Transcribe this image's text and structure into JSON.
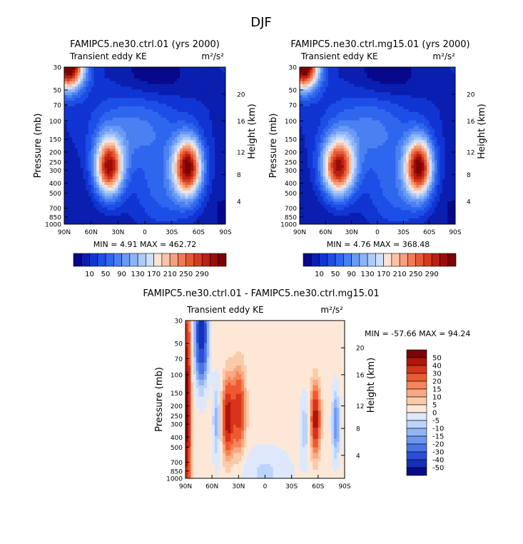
{
  "page_title": "DJF",
  "panels": [
    {
      "title": "FAMIPC5.ne30.ctrl.01 (yrs 2000)",
      "left_label": "Transient eddy KE",
      "units": "m²/s²",
      "min_max": "MIN =   4.91   MAX = 462.72"
    },
    {
      "title": "FAMIPC5.ne30.ctrl.mg15.01 (yrs 2000)",
      "left_label": "Transient eddy KE",
      "units": "m²/s²",
      "min_max": "MIN =   4.76   MAX = 368.48"
    },
    {
      "title": "FAMIPC5.ne30.ctrl.01 - FAMIPC5.ne30.ctrl.mg15.01",
      "left_label": "Transient eddy KE",
      "units": "m²/s²",
      "min_max": "MIN = -57.66   MAX =  94.24"
    }
  ],
  "axes": {
    "ylabel": "Pressure (mb)",
    "ylabel_right": "Height (km)",
    "pressure_ticks": [
      "30",
      "50",
      "70",
      "100",
      "150",
      "200",
      "250",
      "300",
      "400",
      "500",
      "700",
      "850",
      "1000"
    ],
    "height_ticks": [
      "20",
      "16",
      "12",
      "8",
      "4"
    ],
    "lat_ticks": [
      "90N",
      "60N",
      "30N",
      "0",
      "30S",
      "60S",
      "90S"
    ]
  },
  "colorbars": {
    "sequential_labels": [
      "10",
      "50",
      "90",
      "130",
      "170",
      "210",
      "250",
      "290"
    ],
    "difference_labels": [
      "50",
      "40",
      "30",
      "20",
      "15",
      "10",
      "5",
      "0",
      "-5",
      "-10",
      "-15",
      "-20",
      "-30",
      "-40",
      "-50"
    ]
  },
  "colors": {
    "sequential": [
      "#08088a",
      "#0a1fb0",
      "#1035d2",
      "#1d4ee6",
      "#2f66ee",
      "#4a80f2",
      "#6a9af5",
      "#8cb4f8",
      "#aecbfa",
      "#cde0fc",
      "#fbe3d6",
      "#f9c3a8",
      "#f5a07e",
      "#ee7b56",
      "#e55a35",
      "#d63a1e",
      "#bb2010",
      "#9a0d06",
      "#7a0303"
    ],
    "difference": [
      "#7a0303",
      "#b01508",
      "#d8331c",
      "#ee5a30",
      "#f5855a",
      "#f8a982",
      "#fbcaa9",
      "#fde8d8",
      "#dde8fb",
      "#bcd3fb",
      "#93b5f6",
      "#6d96f0",
      "#4a73e6",
      "#2a4fd6",
      "#1530b8",
      "#090b8a"
    ]
  },
  "chart_data": [
    {
      "type": "heatmap",
      "title": "FAMIPC5.ne30.ctrl.01 (yrs 2000)",
      "subtitle": "Transient eddy KE",
      "xlabel": "",
      "ylabel": "Pressure (mb)",
      "ylabel_right": "Height (km)",
      "x_ticks": [
        "90N",
        "60N",
        "30N",
        "0",
        "30S",
        "60S",
        "90S"
      ],
      "y_ticks_mb": [
        30,
        50,
        70,
        100,
        150,
        200,
        250,
        300,
        400,
        500,
        700,
        850,
        1000
      ],
      "contour_levels": [
        10,
        30,
        50,
        70,
        90,
        110,
        130,
        150,
        170,
        190,
        210,
        230,
        250,
        270,
        290
      ],
      "min": 4.91,
      "max": 462.72,
      "features": [
        {
          "lat": 40,
          "p_mb": 280,
          "value": 290
        },
        {
          "lat": -48,
          "p_mb": 280,
          "value": 290
        },
        {
          "lat": 85,
          "p_mb": 30,
          "value": 290
        }
      ]
    },
    {
      "type": "heatmap",
      "title": "FAMIPC5.ne30.ctrl.mg15.01 (yrs 2000)",
      "subtitle": "Transient eddy KE",
      "xlabel": "",
      "ylabel": "Pressure (mb)",
      "ylabel_right": "Height (km)",
      "x_ticks": [
        "90N",
        "60N",
        "30N",
        "0",
        "30S",
        "60S",
        "90S"
      ],
      "y_ticks_mb": [
        30,
        50,
        70,
        100,
        150,
        200,
        250,
        300,
        400,
        500,
        700,
        850,
        1000
      ],
      "contour_levels": [
        10,
        30,
        50,
        70,
        90,
        110,
        130,
        150,
        170,
        190,
        210,
        230,
        250,
        270,
        290
      ],
      "min": 4.76,
      "max": 368.48,
      "features": [
        {
          "lat": 45,
          "p_mb": 280,
          "value": 250
        },
        {
          "lat": -48,
          "p_mb": 280,
          "value": 290
        },
        {
          "lat": 85,
          "p_mb": 30,
          "value": 290
        }
      ]
    },
    {
      "type": "heatmap",
      "title": "FAMIPC5.ne30.ctrl.01 - FAMIPC5.ne30.ctrl.mg15.01",
      "subtitle": "Transient eddy KE",
      "xlabel": "",
      "ylabel": "Pressure (mb)",
      "ylabel_right": "Height (km)",
      "x_ticks": [
        "90N",
        "60N",
        "30N",
        "0",
        "30S",
        "60S",
        "90S"
      ],
      "y_ticks_mb": [
        30,
        50,
        70,
        100,
        150,
        200,
        250,
        300,
        400,
        500,
        700,
        850,
        1000
      ],
      "contour_levels": [
        -50,
        -40,
        -30,
        -20,
        -15,
        -10,
        -5,
        0,
        5,
        10,
        15,
        20,
        30,
        40,
        50
      ],
      "min": -57.66,
      "max": 94.24,
      "features": [
        {
          "lat": 42,
          "p_mb": 260,
          "value": 40
        },
        {
          "lat": 30,
          "p_mb": 220,
          "value": 30
        },
        {
          "lat": 72,
          "p_mb": 40,
          "value": -50
        },
        {
          "lat": -57,
          "p_mb": 270,
          "value": 40
        },
        {
          "lat": -80,
          "p_mb": 300,
          "value": -15
        }
      ]
    }
  ]
}
